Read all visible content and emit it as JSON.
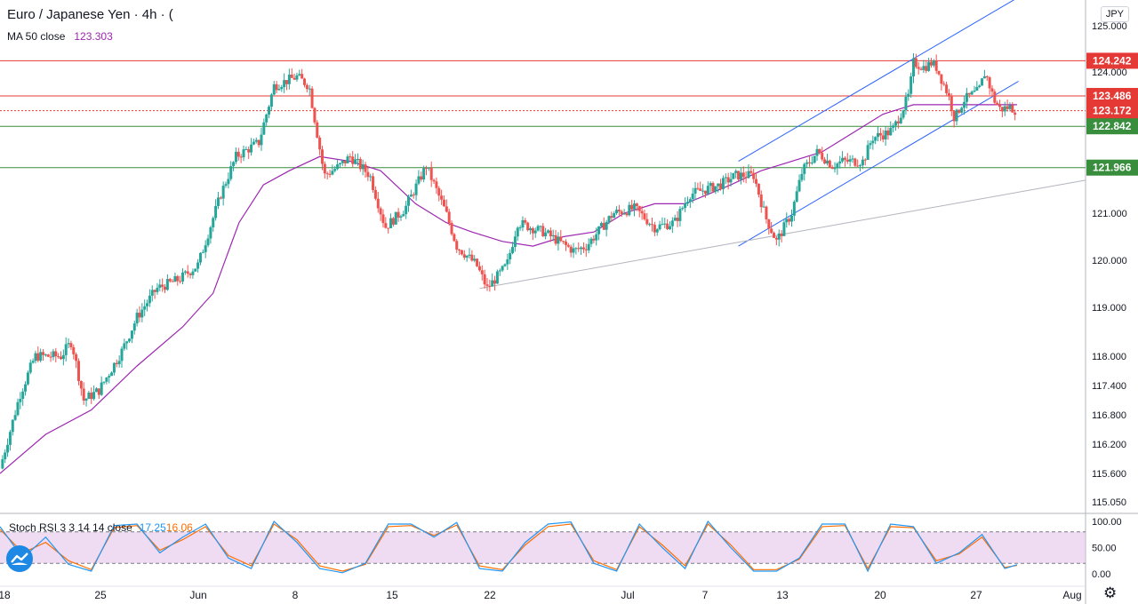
{
  "header": {
    "title": "Euro / Japanese Yen · 4h · (",
    "ma_label": "MA 50 close",
    "ma_value": "123.303",
    "currency": "JPY"
  },
  "oscillator": {
    "label": "Stoch RSI 3 3 14 14 close",
    "k_value": "17.25",
    "d_value": "16.06"
  },
  "icons": {
    "logo": "chart-logo-icon",
    "settings": "gear-icon"
  },
  "colors": {
    "bull": "#26a69a",
    "bear": "#ef5350",
    "ma": "#9c27b0",
    "resistance": "#e53935",
    "support": "#388e3c",
    "channel": "#2962ff",
    "stoch_k": "#2196f3",
    "stoch_d": "#ff6d00",
    "stoch_band": "#e1bee7"
  },
  "chart_data": {
    "type": "candlestick",
    "symbol": "Euro / Japanese Yen",
    "interval": "4h",
    "y_ticks": [
      "125.000",
      "124.000",
      "123.486",
      "121.000",
      "120.000",
      "119.000",
      "118.000",
      "117.400",
      "116.800",
      "116.200",
      "115.600",
      "115.050"
    ],
    "y_tick_values": [
      125.0,
      124.0,
      123.486,
      121.0,
      120.0,
      119.0,
      118.0,
      117.4,
      116.8,
      116.2,
      115.6,
      115.05
    ],
    "x_ticks": [
      "18",
      "25",
      "Jun",
      "8",
      "15",
      "22",
      "Jul",
      "7",
      "13",
      "20",
      "27",
      "Aug"
    ],
    "ylim": [
      115.0,
      125.5
    ],
    "price_path": [
      [
        18,
        115.7
      ],
      [
        19.3,
        117.2
      ],
      [
        20.3,
        118.0
      ],
      [
        22,
        118.0
      ],
      [
        22.7,
        118.3
      ],
      [
        23.5,
        117.1
      ],
      [
        24.5,
        117.3
      ],
      [
        26,
        118.1
      ],
      [
        27,
        118.8
      ],
      [
        28.3,
        119.4
      ],
      [
        29.8,
        119.6
      ],
      [
        31,
        119.9
      ],
      [
        32.5,
        121.4
      ],
      [
        33.5,
        122.2
      ],
      [
        35,
        122.5
      ],
      [
        36,
        123.7
      ],
      [
        37.5,
        123.9
      ],
      [
        38.3,
        123.7
      ],
      [
        39.3,
        121.8
      ],
      [
        40.3,
        122.0
      ],
      [
        41,
        122.2
      ],
      [
        42.3,
        121.8
      ],
      [
        43.3,
        120.7
      ],
      [
        44.6,
        121.1
      ],
      [
        46,
        122.0
      ],
      [
        47.3,
        121.0
      ],
      [
        48,
        120.3
      ],
      [
        49.3,
        119.9
      ],
      [
        50,
        119.4
      ],
      [
        51.3,
        119.9
      ],
      [
        52,
        120.8
      ],
      [
        53.7,
        120.6
      ],
      [
        55.7,
        120.2
      ],
      [
        56.5,
        120.3
      ],
      [
        58.3,
        121.0
      ],
      [
        59.7,
        121.1
      ],
      [
        61,
        120.7
      ],
      [
        62.3,
        120.8
      ],
      [
        63.3,
        121.4
      ],
      [
        64.3,
        121.5
      ],
      [
        65.3,
        121.6
      ],
      [
        66.3,
        121.8
      ],
      [
        67.5,
        121.8
      ],
      [
        68.3,
        120.9
      ],
      [
        69,
        120.4
      ],
      [
        70,
        121.0
      ],
      [
        70.7,
        121.9
      ],
      [
        71.7,
        122.3
      ],
      [
        72.7,
        122.0
      ],
      [
        73.3,
        122.1
      ],
      [
        74.7,
        122.1
      ],
      [
        75.3,
        122.6
      ],
      [
        76.3,
        122.7
      ],
      [
        76.7,
        122.8
      ],
      [
        77.7,
        123.5
      ],
      [
        78,
        124.2
      ],
      [
        78.7,
        124.1
      ],
      [
        79.2,
        124.2
      ],
      [
        79.5,
        124.1
      ],
      [
        80.3,
        123.5
      ],
      [
        80.7,
        123.0
      ],
      [
        81.3,
        123.4
      ],
      [
        82.3,
        123.6
      ],
      [
        82.7,
        124.0
      ],
      [
        83.3,
        123.4
      ],
      [
        83.7,
        123.2
      ],
      [
        84.3,
        123.25
      ],
      [
        84.8,
        123.17
      ]
    ],
    "ma50": [
      [
        18,
        115.6
      ],
      [
        21,
        116.4
      ],
      [
        24,
        116.9
      ],
      [
        27,
        117.8
      ],
      [
        30,
        118.6
      ],
      [
        32,
        119.3
      ],
      [
        33.7,
        120.8
      ],
      [
        35.3,
        121.6
      ],
      [
        37,
        121.9
      ],
      [
        39,
        122.2
      ],
      [
        41,
        122.1
      ],
      [
        43,
        121.9
      ],
      [
        45.3,
        121.2
      ],
      [
        47.3,
        120.8
      ],
      [
        49,
        120.6
      ],
      [
        51,
        120.4
      ],
      [
        53,
        120.3
      ],
      [
        55,
        120.5
      ],
      [
        57,
        120.6
      ],
      [
        59,
        121.0
      ],
      [
        61,
        121.2
      ],
      [
        63,
        121.2
      ],
      [
        64.5,
        121.4
      ],
      [
        66,
        121.6
      ],
      [
        68,
        121.9
      ],
      [
        70,
        122.1
      ],
      [
        72,
        122.3
      ],
      [
        74,
        122.7
      ],
      [
        76,
        123.1
      ],
      [
        78,
        123.3
      ],
      [
        80,
        123.3
      ],
      [
        82,
        123.3
      ],
      [
        84.8,
        123.3
      ]
    ],
    "horizontal_levels": [
      {
        "value": 124.242,
        "label": "124.242",
        "color": "#e53935",
        "style": "solid"
      },
      {
        "value": 123.486,
        "label": "123.486",
        "color": "#e53935",
        "style": "solid"
      },
      {
        "value": 123.172,
        "label": "123.172",
        "color": "#e53935",
        "style": "dotted"
      },
      {
        "value": 122.842,
        "label": "122.842",
        "color": "#388e3c",
        "style": "solid"
      },
      {
        "value": 121.966,
        "label": "121.966",
        "color": "#388e3c",
        "style": "solid"
      }
    ],
    "trendlines": [
      {
        "from": [
          66.5,
          122.1
        ],
        "to": [
          84.8,
          125.6
        ],
        "color": "#2962ff"
      },
      {
        "from": [
          66.5,
          120.3
        ],
        "to": [
          84.9,
          123.8
        ],
        "color": "#2962ff"
      },
      {
        "from": [
          49.5,
          119.4
        ],
        "to": [
          89.3,
          121.7
        ],
        "color": "#b2b5be"
      }
    ],
    "stoch_rsi": {
      "ylim": [
        0,
        100
      ],
      "y_ticks": [
        "100.00",
        "50.00",
        "0.00"
      ],
      "y_tick_values": [
        100,
        50,
        0
      ],
      "bands": [
        80,
        20
      ],
      "k_peaks": [
        [
          18,
          90
        ],
        [
          19.5,
          30
        ],
        [
          21,
          70
        ],
        [
          22.5,
          18
        ],
        [
          24,
          5
        ],
        [
          25.5,
          92
        ],
        [
          27,
          95
        ],
        [
          28.5,
          40
        ],
        [
          30,
          70
        ],
        [
          31.5,
          95
        ],
        [
          33,
          30
        ],
        [
          34.5,
          10
        ],
        [
          36,
          100
        ],
        [
          37.5,
          60
        ],
        [
          39,
          10
        ],
        [
          40.5,
          2
        ],
        [
          42,
          20
        ],
        [
          43.5,
          95
        ],
        [
          45,
          95
        ],
        [
          46.5,
          70
        ],
        [
          48,
          98
        ],
        [
          49.5,
          10
        ],
        [
          51,
          5
        ],
        [
          52.5,
          60
        ],
        [
          54,
          95
        ],
        [
          55.5,
          99
        ],
        [
          57,
          20
        ],
        [
          58.5,
          5
        ],
        [
          60,
          95
        ],
        [
          61.5,
          50
        ],
        [
          63,
          10
        ],
        [
          64.5,
          100
        ],
        [
          66,
          50
        ],
        [
          67.5,
          5
        ],
        [
          69,
          5
        ],
        [
          70.5,
          30
        ],
        [
          72,
          95
        ],
        [
          73.5,
          95
        ],
        [
          75,
          5
        ],
        [
          76.5,
          95
        ],
        [
          78,
          90
        ],
        [
          79.5,
          20
        ],
        [
          81,
          40
        ],
        [
          82.5,
          75
        ],
        [
          84,
          10
        ],
        [
          84.8,
          17.25
        ]
      ],
      "d_peaks": [
        [
          18,
          85
        ],
        [
          19.5,
          40
        ],
        [
          21,
          60
        ],
        [
          22.5,
          25
        ],
        [
          24,
          8
        ],
        [
          25.5,
          88
        ],
        [
          27,
          92
        ],
        [
          28.5,
          45
        ],
        [
          30,
          65
        ],
        [
          31.5,
          90
        ],
        [
          33,
          35
        ],
        [
          34.5,
          15
        ],
        [
          36,
          95
        ],
        [
          37.5,
          65
        ],
        [
          39,
          15
        ],
        [
          40.5,
          5
        ],
        [
          42,
          18
        ],
        [
          43.5,
          90
        ],
        [
          45,
          92
        ],
        [
          46.5,
          73
        ],
        [
          48,
          93
        ],
        [
          49.5,
          15
        ],
        [
          51,
          8
        ],
        [
          52.5,
          55
        ],
        [
          54,
          90
        ],
        [
          55.5,
          95
        ],
        [
          57,
          25
        ],
        [
          58.5,
          8
        ],
        [
          60,
          90
        ],
        [
          61.5,
          55
        ],
        [
          63,
          15
        ],
        [
          64.5,
          95
        ],
        [
          66,
          55
        ],
        [
          67.5,
          8
        ],
        [
          69,
          8
        ],
        [
          70.5,
          28
        ],
        [
          72,
          90
        ],
        [
          73.5,
          92
        ],
        [
          75,
          10
        ],
        [
          76.5,
          90
        ],
        [
          78,
          88
        ],
        [
          79.5,
          25
        ],
        [
          81,
          38
        ],
        [
          82.5,
          70
        ],
        [
          84,
          12
        ],
        [
          84.8,
          16.06
        ]
      ]
    }
  }
}
